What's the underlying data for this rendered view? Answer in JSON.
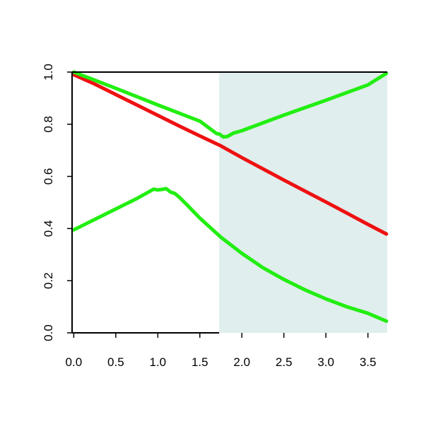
{
  "chart_data": {
    "type": "line",
    "title": "",
    "xlabel": "",
    "ylabel": "",
    "xlim": [
      -0.02,
      3.73
    ],
    "ylim": [
      0.0,
      1.0
    ],
    "x_ticks": [
      0.0,
      0.5,
      1.0,
      1.5,
      2.0,
      2.5,
      3.0,
      3.5
    ],
    "x_tick_labels": [
      "0.0",
      "0.5",
      "1.0",
      "1.5",
      "2.0",
      "2.5",
      "3.0",
      "3.5"
    ],
    "y_ticks": [
      0.0,
      0.2,
      0.4,
      0.6,
      0.8,
      1.0
    ],
    "y_tick_labels": [
      "0.0",
      "0.2",
      "0.4",
      "0.6",
      "0.8",
      "1.0"
    ],
    "grid": false,
    "shaded_region": {
      "x_start": 1.73,
      "x_end": 3.73,
      "color": "#e0eeed"
    },
    "series": [
      {
        "color": "#ee1111",
        "x": [
          0.0,
          0.25,
          0.5,
          0.75,
          1.0,
          1.25,
          1.5,
          1.75,
          2.0,
          2.25,
          2.5,
          2.75,
          3.0,
          3.25,
          3.5,
          3.72
        ],
        "y": [
          0.99,
          0.954,
          0.914,
          0.874,
          0.834,
          0.794,
          0.755,
          0.717,
          0.672,
          0.629,
          0.586,
          0.544,
          0.502,
          0.459,
          0.416,
          0.379
        ]
      },
      {
        "color": "#22ee11",
        "x": [
          0.0,
          0.5,
          1.0,
          1.5,
          1.7,
          1.73,
          1.78,
          1.83,
          1.9,
          2.0,
          2.5,
          3.0,
          3.5,
          3.72
        ],
        "y": [
          1.0,
          0.938,
          0.874,
          0.812,
          0.764,
          0.763,
          0.751,
          0.753,
          0.766,
          0.775,
          0.835,
          0.892,
          0.951,
          0.995
        ]
      },
      {
        "color": "#22ee11",
        "x": [
          0.0,
          0.25,
          0.5,
          0.75,
          0.95,
          1.0,
          1.05,
          1.1,
          1.15,
          1.2,
          1.25,
          1.35,
          1.5,
          1.75,
          2.0,
          2.25,
          2.5,
          2.75,
          3.0,
          3.25,
          3.5,
          3.72
        ],
        "y": [
          0.395,
          0.435,
          0.475,
          0.515,
          0.551,
          0.548,
          0.55,
          0.553,
          0.54,
          0.535,
          0.522,
          0.49,
          0.44,
          0.367,
          0.305,
          0.25,
          0.205,
          0.165,
          0.13,
          0.1,
          0.075,
          0.045
        ]
      }
    ]
  }
}
